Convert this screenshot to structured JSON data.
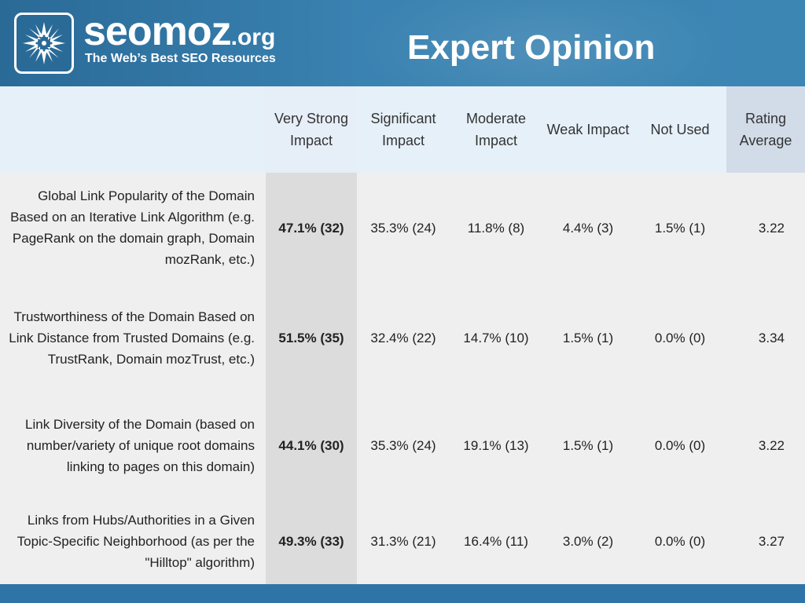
{
  "header": {
    "brand_name": "seomoz",
    "brand_tld": ".org",
    "tagline": "The Web’s Best SEO Resources",
    "title": "Expert Opinion"
  },
  "table": {
    "columns": [
      "",
      "Very Strong Impact",
      "Significant Impact",
      "Moderate Impact",
      "Weak Impact",
      "Not Used",
      "Rating Average"
    ],
    "rows": [
      {
        "label": "Global Link Popularity of the Domain Based on an Iterative Link Algorithm (e.g. PageRank on the domain graph, Domain mozRank, etc.)",
        "very_strong": "47.1% (32)",
        "significant": "35.3% (24)",
        "moderate": "11.8% (8)",
        "weak": "4.4% (3)",
        "not_used": "1.5% (1)",
        "rating": "3.22"
      },
      {
        "label": "Trustworthiness of the Domain Based on Link Distance from Trusted Domains (e.g. TrustRank, Domain mozTrust, etc.)",
        "very_strong": "51.5% (35)",
        "significant": "32.4% (22)",
        "moderate": "14.7% (10)",
        "weak": "1.5% (1)",
        "not_used": "0.0% (0)",
        "rating": "3.34"
      },
      {
        "label": "Link Diversity of the Domain (based on number/variety of unique root domains linking to pages on this domain)",
        "very_strong": "44.1% (30)",
        "significant": "35.3% (24)",
        "moderate": "19.1% (13)",
        "weak": "1.5% (1)",
        "not_used": "0.0% (0)",
        "rating": "3.22"
      },
      {
        "label": "Links from Hubs/Authorities in a Given Topic-Specific Neighborhood (as per the \"Hilltop\" algorithm)",
        "very_strong": "49.3% (33)",
        "significant": "31.3% (21)",
        "moderate": "16.4% (11)",
        "weak": "3.0% (2)",
        "not_used": "0.0% (0)",
        "rating": "3.27"
      }
    ]
  },
  "colors": {
    "header_blue": "#3a82b1",
    "highlight_col": "#dcdcdc",
    "header_row": "#e6f0f9"
  },
  "icons": {
    "logo": "star-burst-logo-icon"
  }
}
